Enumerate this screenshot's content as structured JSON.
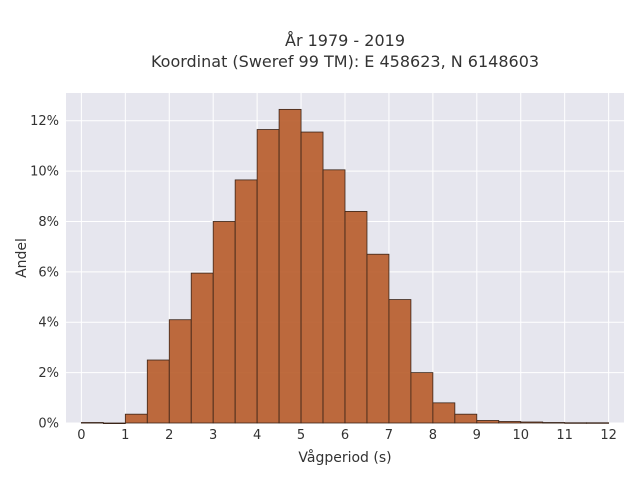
{
  "chart_data": {
    "type": "bar",
    "title": "År 1979 - 2019",
    "subtitle": "Koordinat (Sweref 99 TM): E 458623, N 6148603",
    "xlabel": "Vågperiod (s)",
    "ylabel": "Andel",
    "x_ticks": [
      0,
      1,
      2,
      3,
      4,
      5,
      6,
      7,
      8,
      9,
      10,
      11,
      12
    ],
    "y_ticks": [
      0,
      2,
      4,
      6,
      8,
      10,
      12
    ],
    "y_tick_labels": [
      "0%",
      "2%",
      "4%",
      "6%",
      "8%",
      "10%",
      "12%"
    ],
    "xlim": [
      -0.35,
      12.35
    ],
    "ylim": [
      0,
      13.1
    ],
    "bin_width": 0.5,
    "bins_start": [
      0,
      0.5,
      1,
      1.5,
      2,
      2.5,
      3,
      3.5,
      4,
      4.5,
      5,
      5.5,
      6,
      6.5,
      7,
      7.5,
      8,
      8.5,
      9,
      9.5,
      10,
      10.5,
      11,
      11.5
    ],
    "values": [
      0.02,
      0.0,
      0.35,
      2.5,
      4.1,
      5.95,
      8.0,
      9.65,
      11.65,
      12.45,
      11.55,
      10.05,
      8.4,
      6.7,
      4.9,
      2.0,
      0.8,
      0.35,
      0.1,
      0.06,
      0.04,
      0.02,
      0.01,
      0.01
    ],
    "bar_color": "#b85e2e",
    "bar_edge_color": "#3a2418",
    "plot_background": "#e6e6ee",
    "grid": true,
    "grid_color": "#ffffff",
    "legend": "none"
  }
}
